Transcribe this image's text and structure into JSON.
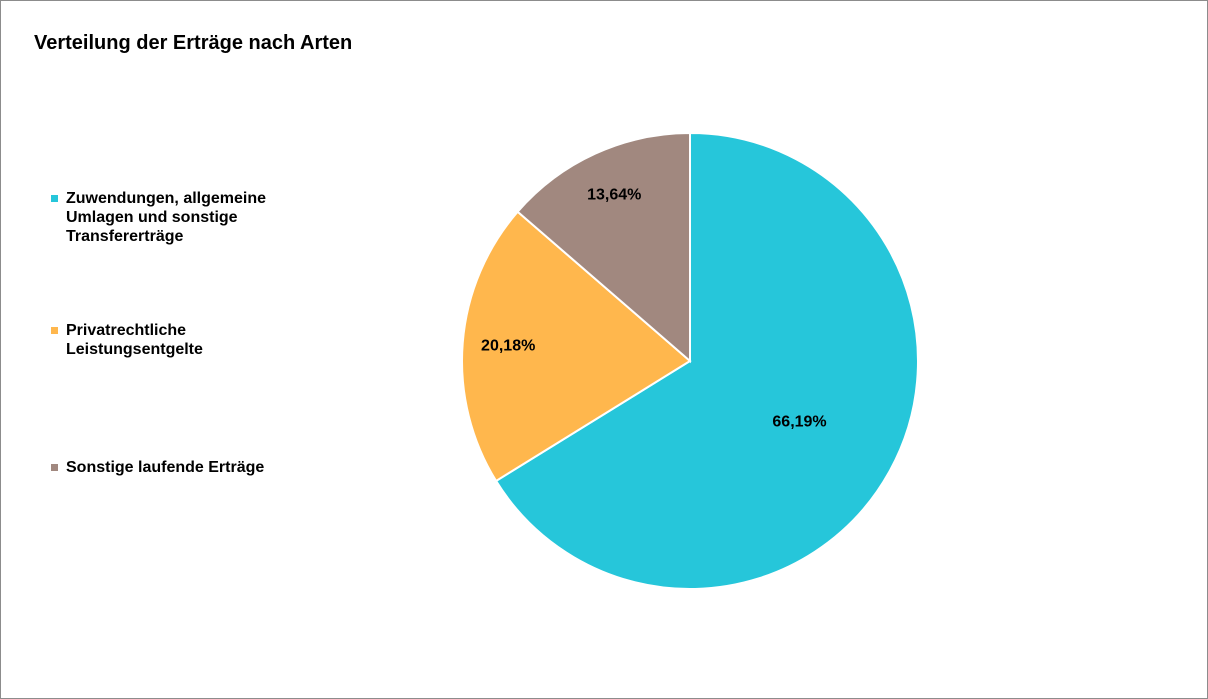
{
  "chart_data": {
    "type": "pie",
    "title": "Verteilung der Erträge nach Arten",
    "categories": [
      "Zuwendungen, allgemeine Umlagen und sonstige Transfererträge",
      "Privatrechtliche Leistungsentgelte",
      "Sonstige laufende Erträge"
    ],
    "values": [
      66.19,
      20.18,
      13.64
    ],
    "value_labels": [
      "66,19%",
      "20,18%",
      "13,64%"
    ],
    "colors": [
      "#26c6da",
      "#ffb74d",
      "#a1887f"
    ],
    "legend": "left"
  }
}
